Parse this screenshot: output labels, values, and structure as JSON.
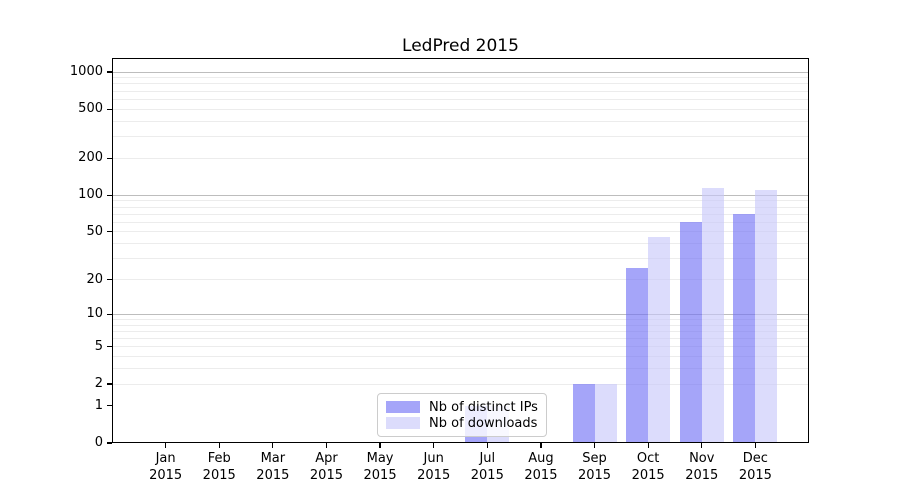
{
  "chart_data": {
    "type": "bar",
    "title": "LedPred 2015",
    "categories": [
      "Jan",
      "Feb",
      "Mar",
      "Apr",
      "May",
      "Jun",
      "Jul",
      "Aug",
      "Sep",
      "Oct",
      "Nov",
      "Dec"
    ],
    "year": "2015",
    "series": [
      {
        "name": "Nb of distinct IPs",
        "color": "#6e6ef5",
        "alpha": 0.62,
        "values": [
          0,
          0,
          0,
          0,
          0,
          0,
          1,
          0,
          2,
          25,
          60,
          70
        ]
      },
      {
        "name": "Nb of downloads",
        "color": "#c7c7fa",
        "alpha": 0.62,
        "values": [
          0,
          0,
          0,
          0,
          0,
          0,
          1,
          0,
          2,
          45,
          115,
          110
        ]
      }
    ],
    "yticks": [
      0,
      1,
      2,
      5,
      10,
      20,
      50,
      100,
      200,
      500,
      1000
    ],
    "yscale": "log(1+x)",
    "ylim": [
      0,
      1300
    ],
    "grid": "on",
    "legend_position": "lower center"
  },
  "colors": {
    "bar_ips_on_white": "#a5a5f4",
    "bar_downloads_on_white": "#dcdcf9",
    "grid_major": "#bdbdbd",
    "grid_minor": "#ececec",
    "axis": "#000000",
    "legend_border": "#cccccc",
    "background": "#ffffff"
  }
}
